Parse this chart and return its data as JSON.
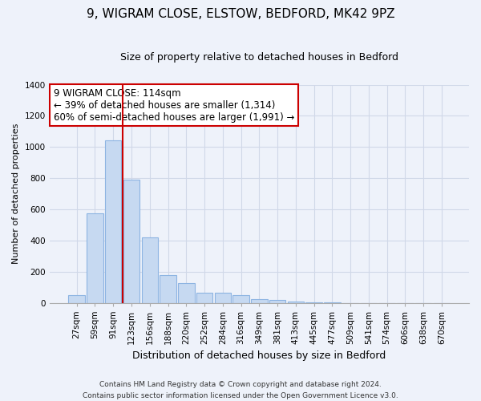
{
  "title": "9, WIGRAM CLOSE, ELSTOW, BEDFORD, MK42 9PZ",
  "subtitle": "Size of property relative to detached houses in Bedford",
  "xlabel": "Distribution of detached houses by size in Bedford",
  "ylabel": "Number of detached properties",
  "bar_labels": [
    "27sqm",
    "59sqm",
    "91sqm",
    "123sqm",
    "156sqm",
    "188sqm",
    "220sqm",
    "252sqm",
    "284sqm",
    "316sqm",
    "349sqm",
    "381sqm",
    "413sqm",
    "445sqm",
    "477sqm",
    "509sqm",
    "541sqm",
    "574sqm",
    "606sqm",
    "638sqm",
    "670sqm"
  ],
  "bar_values": [
    50,
    575,
    1040,
    790,
    420,
    180,
    125,
    62,
    62,
    50,
    25,
    20,
    10,
    5,
    2,
    0,
    0,
    0,
    0,
    0,
    0
  ],
  "bar_color": "#c6d9f1",
  "bar_edge_color": "#8db4e2",
  "vline_x": 2.5,
  "vline_color": "#cc0000",
  "ylim": [
    0,
    1400
  ],
  "yticks": [
    0,
    200,
    400,
    600,
    800,
    1000,
    1200,
    1400
  ],
  "annotation_title": "9 WIGRAM CLOSE: 114sqm",
  "annotation_line1": "← 39% of detached houses are smaller (1,314)",
  "annotation_line2": "60% of semi-detached houses are larger (1,991) →",
  "annotation_box_facecolor": "#ffffff",
  "annotation_box_edgecolor": "#cc0000",
  "footer_line1": "Contains HM Land Registry data © Crown copyright and database right 2024.",
  "footer_line2": "Contains public sector information licensed under the Open Government Licence v3.0.",
  "bg_color": "#eef2fa",
  "grid_color": "#d0d8e8",
  "title_fontsize": 11,
  "subtitle_fontsize": 9,
  "ylabel_fontsize": 8,
  "xlabel_fontsize": 9,
  "tick_fontsize": 7.5,
  "annotation_fontsize": 8.5
}
